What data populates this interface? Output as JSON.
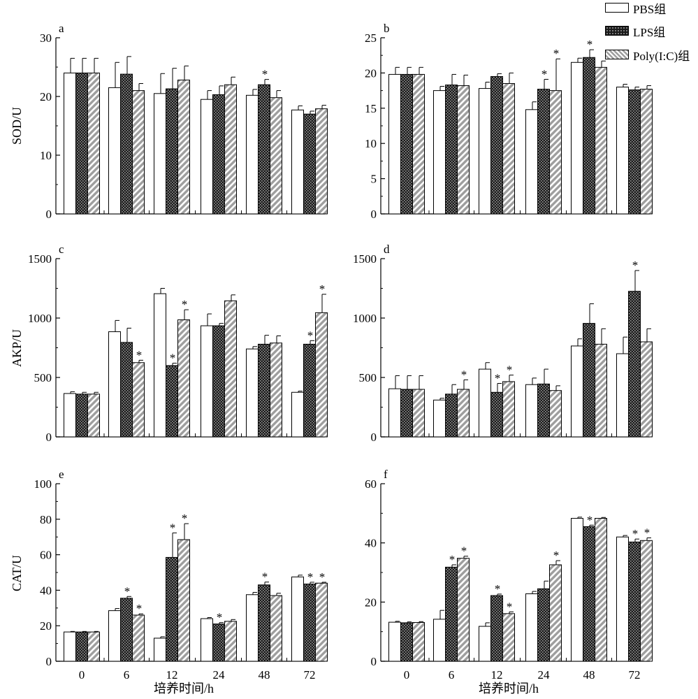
{
  "legend": {
    "pbs": "PBS组",
    "lps": "LPS组",
    "poly": "Poly(I:C)组"
  },
  "xlabel": "培养时间/h",
  "chart_data": [
    {
      "panel": "a",
      "type": "bar",
      "ylabel": "SOD/U",
      "categories": [
        "0",
        "6",
        "12",
        "24",
        "48",
        "72"
      ],
      "ylim": [
        0,
        30
      ],
      "yticks": [
        0,
        10,
        20,
        30
      ],
      "series": [
        {
          "name": "PBS组",
          "values": [
            24.0,
            21.5,
            20.5,
            19.5,
            20.2,
            17.7
          ],
          "errors": [
            2.5,
            4.3,
            3.4,
            1.5,
            1.0,
            0.7
          ],
          "sig": [
            false,
            false,
            false,
            false,
            false,
            false
          ]
        },
        {
          "name": "LPS组",
          "values": [
            24.0,
            23.8,
            21.3,
            20.3,
            22.0,
            17.0
          ],
          "errors": [
            2.5,
            3.0,
            3.5,
            1.5,
            0.9,
            0.5
          ],
          "sig": [
            false,
            false,
            false,
            false,
            true,
            false
          ]
        },
        {
          "name": "Poly(I:C)组",
          "values": [
            24.0,
            21.0,
            22.8,
            22.0,
            19.8,
            17.9
          ],
          "errors": [
            2.5,
            1.2,
            2.4,
            1.3,
            1.2,
            0.6
          ],
          "sig": [
            false,
            false,
            false,
            false,
            false,
            false
          ]
        }
      ]
    },
    {
      "panel": "b",
      "type": "bar",
      "ylabel": "",
      "categories": [
        "0",
        "6",
        "12",
        "24",
        "48",
        "72"
      ],
      "ylim": [
        0,
        25
      ],
      "yticks": [
        0,
        5,
        10,
        15,
        20,
        25
      ],
      "series": [
        {
          "name": "PBS组",
          "values": [
            19.8,
            17.5,
            17.8,
            14.8,
            21.5,
            18.0
          ],
          "errors": [
            1.0,
            0.6,
            0.9,
            1.1,
            0.6,
            0.4
          ],
          "sig": [
            false,
            false,
            false,
            false,
            false,
            false
          ]
        },
        {
          "name": "LPS组",
          "values": [
            19.8,
            18.3,
            19.5,
            17.7,
            22.2,
            17.6
          ],
          "errors": [
            1.0,
            1.5,
            0.4,
            1.4,
            1.1,
            0.4
          ],
          "sig": [
            false,
            false,
            false,
            true,
            true,
            false
          ]
        },
        {
          "name": "Poly(I:C)组",
          "values": [
            19.8,
            18.2,
            18.5,
            17.5,
            20.8,
            17.7
          ],
          "errors": [
            1.0,
            1.5,
            1.5,
            4.5,
            0.9,
            0.5
          ],
          "sig": [
            false,
            false,
            false,
            true,
            false,
            false
          ]
        }
      ]
    },
    {
      "panel": "c",
      "type": "bar",
      "ylabel": "AKP/U",
      "categories": [
        "0",
        "6",
        "12",
        "24",
        "48",
        "72"
      ],
      "ylim": [
        0,
        1500
      ],
      "yticks": [
        0,
        500,
        1000,
        1500
      ],
      "series": [
        {
          "name": "PBS组",
          "values": [
            365,
            885,
            1205,
            935,
            740,
            375
          ],
          "errors": [
            15,
            95,
            45,
            100,
            20,
            10
          ],
          "sig": [
            false,
            false,
            false,
            false,
            false,
            false
          ]
        },
        {
          "name": "LPS组",
          "values": [
            360,
            795,
            600,
            935,
            780,
            780
          ],
          "errors": [
            15,
            120,
            20,
            20,
            75,
            30
          ],
          "sig": [
            false,
            false,
            true,
            false,
            false,
            true
          ]
        },
        {
          "name": "Poly(I:C)组",
          "values": [
            360,
            625,
            985,
            1145,
            790,
            1045
          ],
          "errors": [
            15,
            20,
            85,
            50,
            60,
            155
          ],
          "sig": [
            false,
            true,
            true,
            false,
            false,
            true
          ]
        }
      ]
    },
    {
      "panel": "d",
      "type": "bar",
      "ylabel": "",
      "categories": [
        "0",
        "6",
        "12",
        "24",
        "48",
        "72"
      ],
      "ylim": [
        0,
        1500
      ],
      "yticks": [
        0,
        500,
        1000,
        1500
      ],
      "series": [
        {
          "name": "PBS组",
          "values": [
            405,
            310,
            570,
            440,
            765,
            700
          ],
          "errors": [
            110,
            15,
            55,
            55,
            60,
            140
          ],
          "sig": [
            false,
            false,
            false,
            false,
            false,
            false
          ]
        },
        {
          "name": "LPS组",
          "values": [
            400,
            360,
            375,
            445,
            955,
            1225
          ],
          "errors": [
            115,
            80,
            75,
            125,
            165,
            175
          ],
          "sig": [
            false,
            false,
            true,
            false,
            false,
            true
          ]
        },
        {
          "name": "Poly(I:C)组",
          "values": [
            400,
            400,
            465,
            390,
            780,
            800
          ],
          "errors": [
            115,
            80,
            55,
            40,
            130,
            110
          ],
          "sig": [
            false,
            true,
            true,
            false,
            false,
            false
          ]
        }
      ]
    },
    {
      "panel": "e",
      "type": "bar",
      "ylabel": "CAT/U",
      "categories": [
        "0",
        "6",
        "12",
        "24",
        "48",
        "72"
      ],
      "ylim": [
        0,
        100
      ],
      "yticks": [
        0,
        20,
        40,
        60,
        80,
        100
      ],
      "series": [
        {
          "name": "PBS组",
          "values": [
            16.5,
            28.5,
            13.0,
            24.0,
            37.5,
            47.5
          ],
          "errors": [
            0.3,
            1.2,
            0.8,
            0.6,
            1.3,
            1.0
          ],
          "sig": [
            false,
            false,
            false,
            false,
            false,
            false
          ]
        },
        {
          "name": "LPS组",
          "values": [
            16.5,
            35.5,
            58.5,
            21.0,
            43.0,
            43.5
          ],
          "errors": [
            0.3,
            1.0,
            13.8,
            0.8,
            1.6,
            1.0
          ],
          "sig": [
            false,
            true,
            true,
            true,
            true,
            true
          ]
        },
        {
          "name": "Poly(I:C)组",
          "values": [
            16.5,
            26.0,
            68.5,
            22.5,
            37.0,
            44.0
          ],
          "errors": [
            0.3,
            0.7,
            9.0,
            1.0,
            1.3,
            0.5
          ],
          "sig": [
            false,
            true,
            true,
            false,
            false,
            true
          ]
        }
      ]
    },
    {
      "panel": "f",
      "type": "bar",
      "ylabel": "",
      "categories": [
        "0",
        "6",
        "12",
        "24",
        "48",
        "72"
      ],
      "ylim": [
        0,
        60
      ],
      "yticks": [
        0,
        20,
        40,
        60
      ],
      "series": [
        {
          "name": "PBS组",
          "values": [
            13.2,
            14.2,
            11.8,
            22.8,
            48.3,
            42.0
          ],
          "errors": [
            0.3,
            3.0,
            1.2,
            0.8,
            0.4,
            0.5
          ],
          "sig": [
            false,
            false,
            false,
            false,
            false,
            false
          ]
        },
        {
          "name": "LPS组",
          "values": [
            13.0,
            31.8,
            22.2,
            24.5,
            45.5,
            40.3
          ],
          "errors": [
            0.3,
            0.8,
            0.5,
            2.6,
            0.5,
            1.0
          ],
          "sig": [
            false,
            true,
            true,
            false,
            true,
            true
          ]
        },
        {
          "name": "Poly(I:C)组",
          "values": [
            13.1,
            34.8,
            16.1,
            32.6,
            48.3,
            40.8
          ],
          "errors": [
            0.3,
            0.7,
            0.6,
            1.4,
            0.3,
            0.9
          ],
          "sig": [
            false,
            true,
            true,
            true,
            false,
            true
          ]
        }
      ]
    }
  ]
}
